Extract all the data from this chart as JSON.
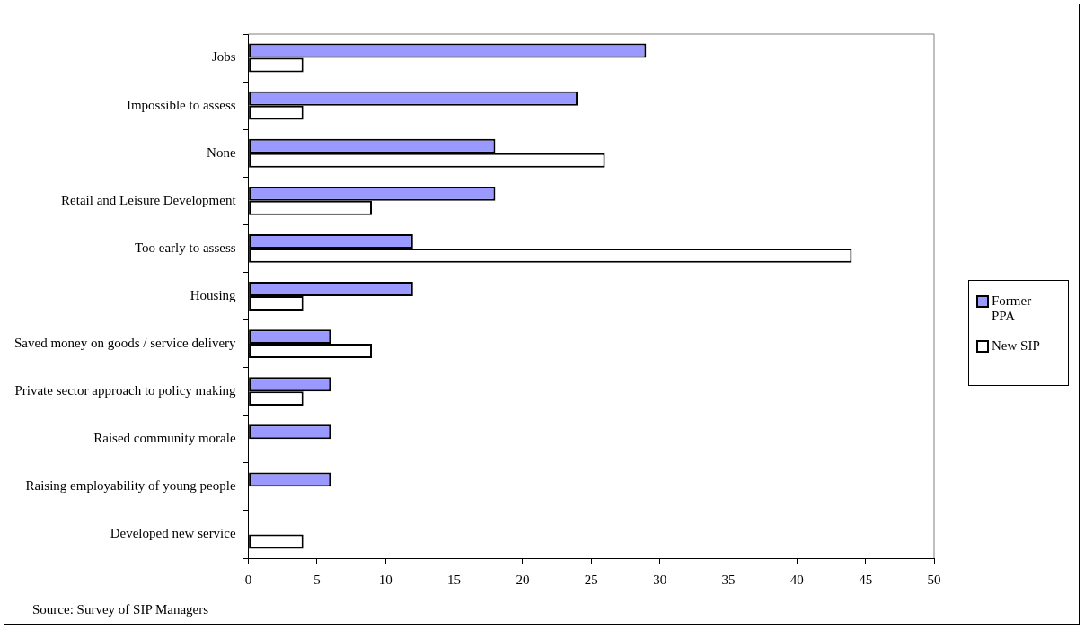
{
  "chart_data": {
    "type": "bar",
    "orientation": "horizontal",
    "categories": [
      "Jobs",
      "Impossible to assess",
      "None",
      "Retail and Leisure Development",
      "Too early to assess",
      "Housing",
      "Saved money on goods / service delivery",
      "Private sector approach to policy making",
      "Raised community morale",
      "Raising employability of young people",
      "Developed new service"
    ],
    "series": [
      {
        "name": "Former PPA",
        "color": "#9999ff",
        "values": [
          29,
          24,
          18,
          18,
          12,
          12,
          6,
          6,
          6,
          6,
          null
        ]
      },
      {
        "name": "New SIP",
        "color": "#ffffff",
        "values": [
          4,
          4,
          26,
          9,
          44,
          4,
          9,
          4,
          null,
          null,
          4
        ]
      }
    ],
    "xlim": [
      0,
      50
    ],
    "xticks": [
      0,
      5,
      10,
      15,
      20,
      25,
      30,
      35,
      40,
      45,
      50
    ],
    "grid": false,
    "legend": "right",
    "annotations": [
      "Source: Survey of SIP Managers"
    ]
  }
}
